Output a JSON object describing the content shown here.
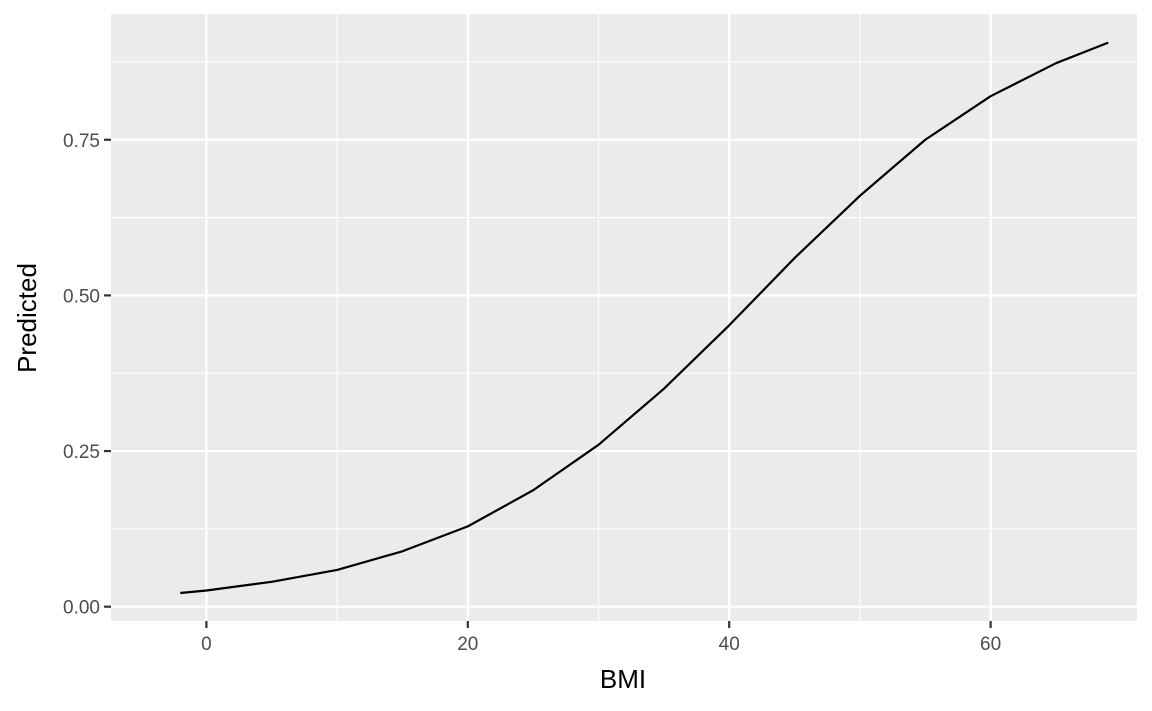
{
  "chart_data": {
    "type": "line",
    "title": "",
    "xlabel": "BMI",
    "ylabel": "Predicted",
    "xlim": [
      -7.3,
      71.2
    ],
    "ylim": [
      -0.023,
      0.952
    ],
    "x_ticks": [
      0,
      20,
      40,
      60
    ],
    "x_tick_labels": [
      "0",
      "20",
      "40",
      "60"
    ],
    "y_ticks": [
      0,
      0.25,
      0.5,
      0.75
    ],
    "y_tick_labels": [
      "0.00",
      "0.25",
      "0.50",
      "0.75"
    ],
    "x_minor_gridlines": [
      10,
      30,
      50
    ],
    "y_minor_gridlines": [
      0.125,
      0.375,
      0.625,
      0.875
    ],
    "grid": true,
    "background_color": "#ebebeb",
    "grid_color": "#ffffff",
    "line_color": "#000000",
    "series": [
      {
        "x": [
          -2,
          0,
          5,
          10,
          15,
          20,
          25,
          30,
          35,
          40,
          45,
          50,
          55,
          60,
          65,
          69
        ],
        "y": [
          0.022,
          0.026,
          0.04,
          0.059,
          0.089,
          0.129,
          0.187,
          0.26,
          0.35,
          0.452,
          0.56,
          0.66,
          0.75,
          0.82,
          0.873,
          0.906
        ]
      }
    ]
  }
}
